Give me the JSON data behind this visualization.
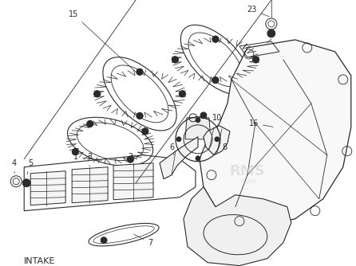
{
  "caption": "INTAKE",
  "background_color": "#ffffff",
  "line_color": "#2a2a2a",
  "fig_width": 4.46,
  "fig_height": 3.34,
  "dpi": 100,
  "watermark": "RMS\n.com",
  "watermark_color": "#cccccc"
}
